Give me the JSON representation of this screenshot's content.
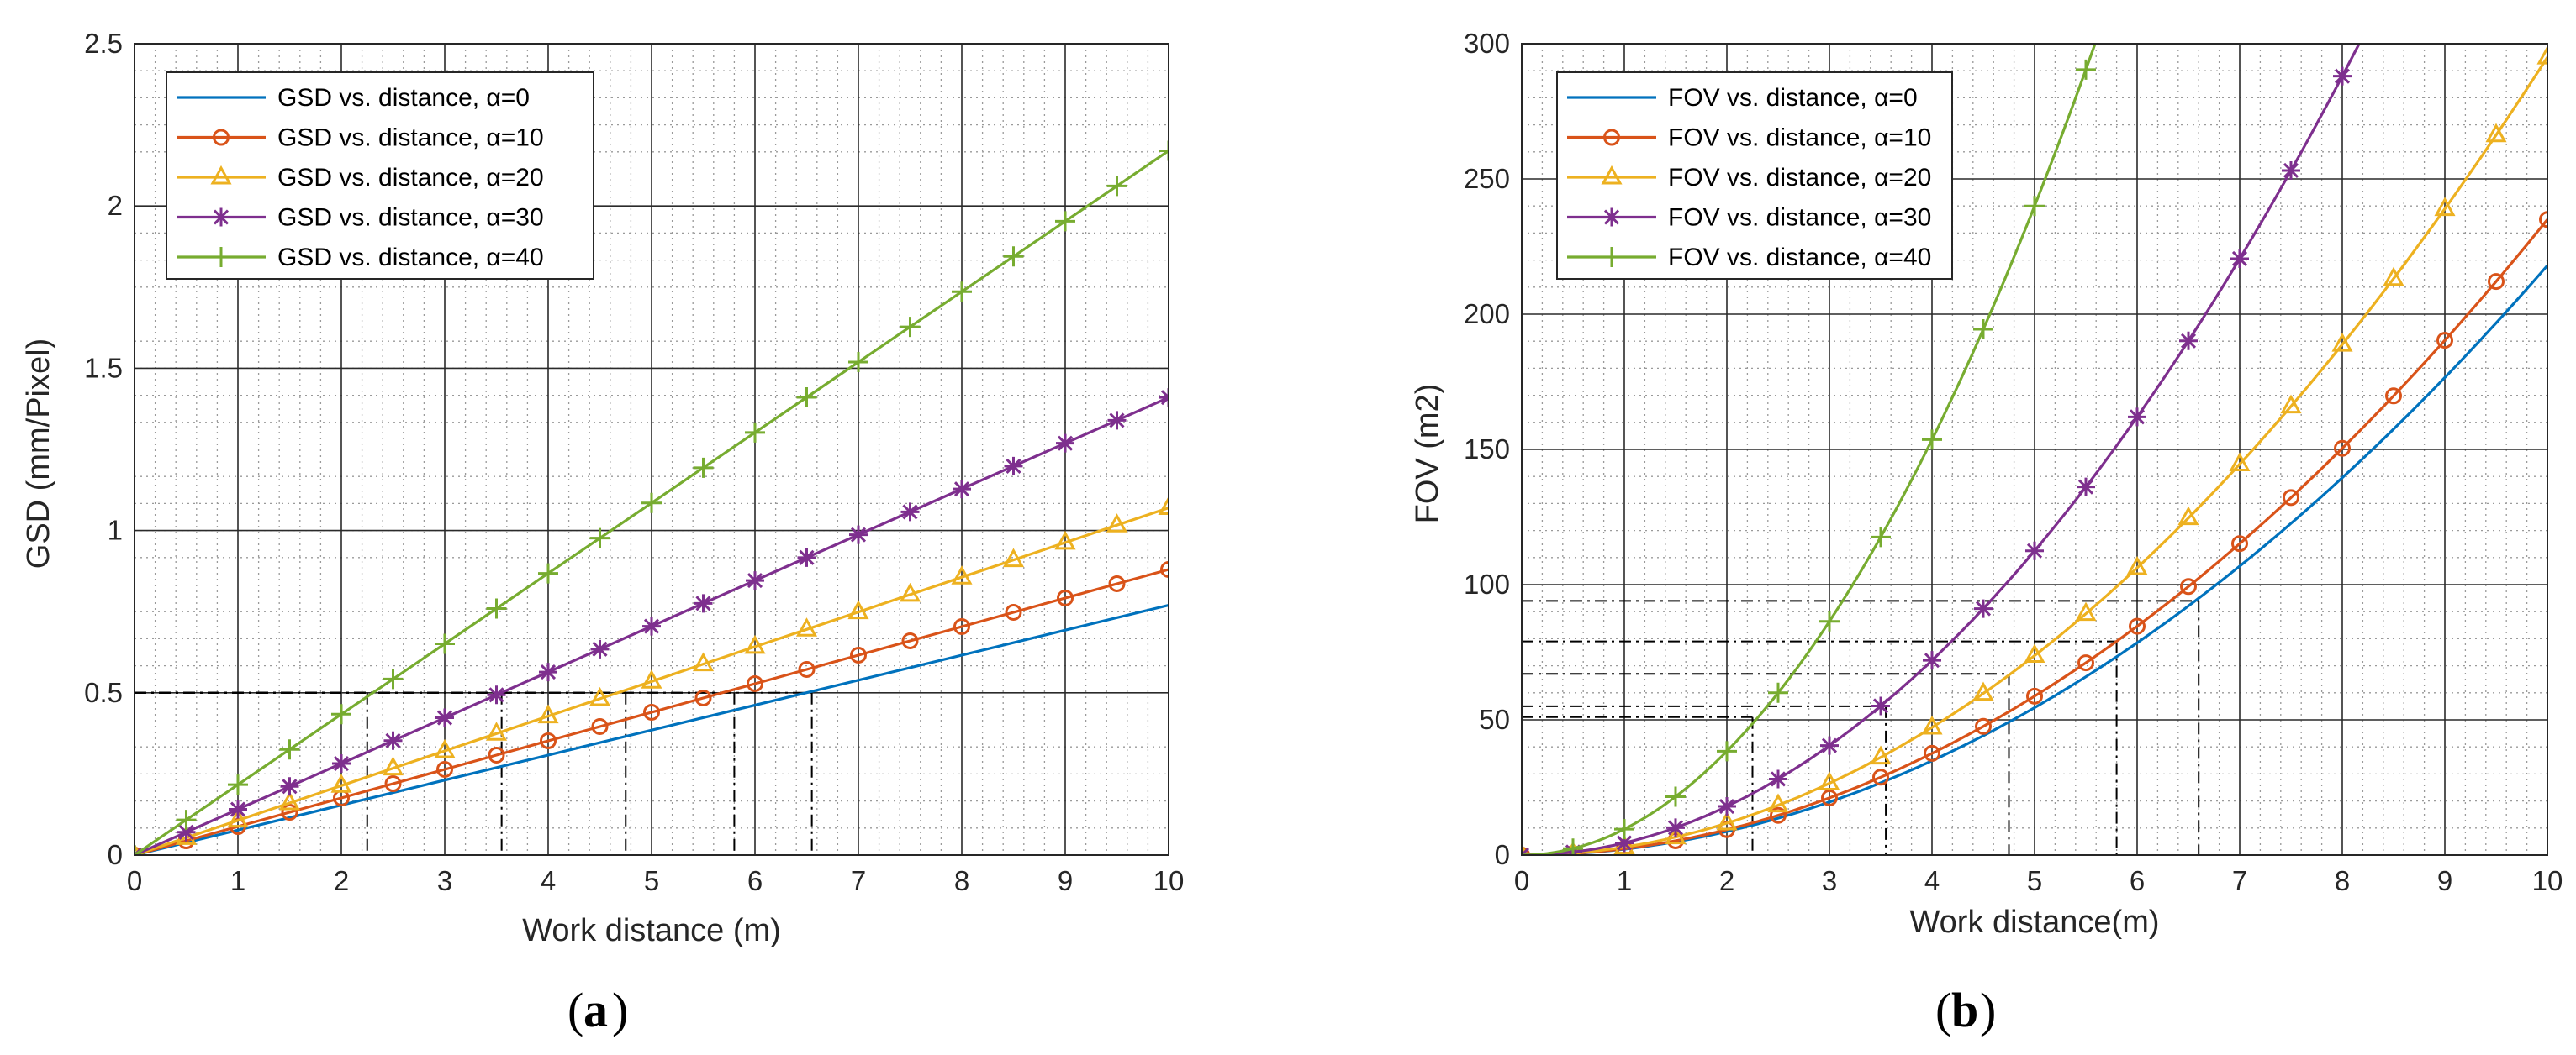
{
  "chart_data": [
    {
      "type": "line",
      "panel": "a",
      "panel_label": "a",
      "xlabel": "Work distance (m)",
      "ylabel": "GSD (mm/Pixel)",
      "xlim": [
        0,
        10
      ],
      "ylim": [
        0,
        2.5
      ],
      "xticks": [
        "0",
        "1",
        "2",
        "3",
        "4",
        "5",
        "6",
        "7",
        "8",
        "9",
        "10"
      ],
      "yticks": [
        "0",
        "0.5",
        "1",
        "1.5",
        "2",
        "2.5"
      ],
      "grid": true,
      "legend_position": "top-left",
      "series": [
        {
          "name": "GSD vs. distance, α=0",
          "color": "#0072BD",
          "marker": "none",
          "x": [
            0,
            10
          ],
          "y": [
            0,
            0.77
          ]
        },
        {
          "name": "GSD vs. distance, α=10",
          "color": "#D95319",
          "marker": "circle",
          "x": [
            0,
            0.5,
            1,
            1.5,
            2,
            2.5,
            3,
            3.5,
            4,
            4.5,
            5,
            5.5,
            6,
            6.5,
            7,
            7.5,
            8,
            8.5,
            9,
            9.5,
            10
          ],
          "y": [
            0,
            0.044,
            0.088,
            0.132,
            0.176,
            0.22,
            0.264,
            0.308,
            0.352,
            0.396,
            0.44,
            0.484,
            0.528,
            0.572,
            0.616,
            0.66,
            0.704,
            0.748,
            0.792,
            0.836,
            0.88
          ]
        },
        {
          "name": "GSD vs. distance, α=20",
          "color": "#EDB120",
          "marker": "triangle",
          "x": [
            0,
            0.5,
            1,
            1.5,
            2,
            2.5,
            3,
            3.5,
            4,
            4.5,
            5,
            5.5,
            6,
            6.5,
            7,
            7.5,
            8,
            8.5,
            9,
            9.5,
            10
          ],
          "y": [
            0,
            0.0535,
            0.107,
            0.1605,
            0.214,
            0.2675,
            0.321,
            0.3745,
            0.428,
            0.4815,
            0.535,
            0.5885,
            0.642,
            0.6955,
            0.749,
            0.8025,
            0.856,
            0.9095,
            0.963,
            1.0165,
            1.07
          ]
        },
        {
          "name": "GSD vs. distance, α=30",
          "color": "#7E2F8E",
          "marker": "asterisk",
          "x": [
            0,
            0.5,
            1,
            1.5,
            2,
            2.5,
            3,
            3.5,
            4,
            4.5,
            5,
            5.5,
            6,
            6.5,
            7,
            7.5,
            8,
            8.5,
            9,
            9.5,
            10
          ],
          "y": [
            0,
            0.0705,
            0.141,
            0.2115,
            0.282,
            0.3525,
            0.423,
            0.4935,
            0.564,
            0.6345,
            0.705,
            0.7755,
            0.846,
            0.9165,
            0.987,
            1.0575,
            1.128,
            1.1985,
            1.269,
            1.3395,
            1.41
          ]
        },
        {
          "name": "GSD vs. distance, α=40",
          "color": "#77AC30",
          "marker": "plus",
          "x": [
            0,
            0.5,
            1,
            1.5,
            2,
            2.5,
            3,
            3.5,
            4,
            4.5,
            5,
            5.5,
            6,
            6.5,
            7,
            7.5,
            8,
            8.5,
            9,
            9.5,
            10
          ],
          "y": [
            0,
            0.1085,
            0.217,
            0.3255,
            0.434,
            0.5425,
            0.651,
            0.7595,
            0.868,
            0.9765,
            1.085,
            1.1935,
            1.302,
            1.4105,
            1.519,
            1.6275,
            1.736,
            1.8445,
            1.953,
            2.0615,
            2.17
          ]
        }
      ],
      "reference_lines": {
        "y": [
          0.5,
          0.5,
          0.5,
          0.5,
          0.5
        ],
        "x": [
          2.25,
          3.55,
          4.75,
          5.8,
          6.55
        ],
        "x_stop": [
          0.5,
          0.5,
          0.5,
          0.5,
          0.5
        ],
        "style": "dash-dot black"
      }
    },
    {
      "type": "line",
      "panel": "b",
      "panel_label": "b",
      "xlabel": "Work distance(m)",
      "ylabel": "FOV (m2)",
      "xlim": [
        0,
        10
      ],
      "ylim": [
        0,
        300
      ],
      "xticks": [
        "0",
        "1",
        "2",
        "3",
        "4",
        "5",
        "6",
        "7",
        "8",
        "9",
        "10"
      ],
      "yticks": [
        "0",
        "50",
        "100",
        "150",
        "200",
        "250",
        "300"
      ],
      "grid": true,
      "legend_position": "top-left",
      "series": [
        {
          "name": "FOV vs. distance, α=0",
          "color": "#0072BD",
          "marker": "none",
          "k": 2.18
        },
        {
          "name": "FOV vs. distance, α=10",
          "color": "#D95319",
          "marker": "circle",
          "k": 2.35
        },
        {
          "name": "FOV vs. distance, α=20",
          "color": "#EDB120",
          "marker": "triangle",
          "k": 2.95
        },
        {
          "name": "FOV vs. distance, α=30",
          "color": "#7E2F8E",
          "marker": "asterisk",
          "k": 4.5
        },
        {
          "name": "FOV vs. distance, α=40",
          "color": "#77AC30",
          "marker": "plus",
          "k": 9.6
        }
      ],
      "curve_model": "y = k * x^2, sampled every 0.5 m",
      "reference_lines": {
        "y": [
          51,
          55,
          67,
          79,
          94
        ],
        "x": [
          2.25,
          3.55,
          4.75,
          5.8,
          6.6
        ],
        "style": "dash-dot black"
      }
    }
  ]
}
